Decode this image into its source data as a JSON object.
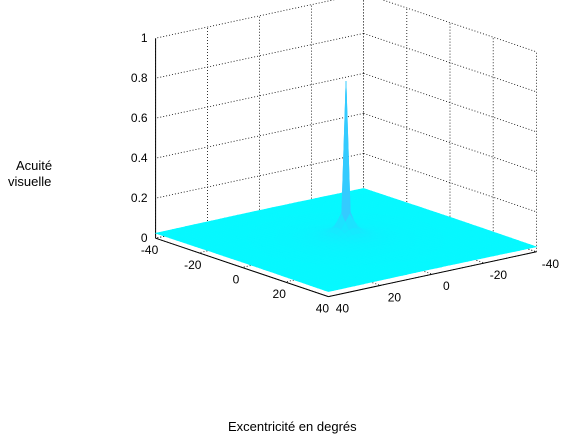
{
  "chart_data": {
    "type": "surface",
    "title": "",
    "xlabel": "Excentricité en degrés",
    "ylabel": "",
    "zlabel": [
      "Acuité",
      "visuelle"
    ],
    "xlim": [
      -40,
      40
    ],
    "ylim": [
      -40,
      40
    ],
    "zlim": [
      0,
      1
    ],
    "x_ticks": [
      "-40",
      "-20",
      "0",
      "20",
      "40"
    ],
    "y_ticks": [
      "40",
      "20",
      "0",
      "-20",
      "-40"
    ],
    "z_ticks": [
      "0",
      "0.2",
      "0.4",
      "0.6",
      "0.8",
      "1"
    ],
    "grid": true,
    "peak": {
      "x": 0,
      "y": 0,
      "z": 0.82
    },
    "floor_value": 0.02,
    "colormap": [
      "#00ffff",
      "#ff00ff"
    ]
  }
}
